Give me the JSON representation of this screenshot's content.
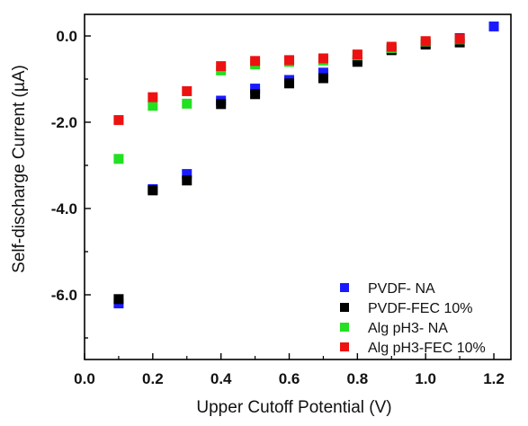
{
  "chart_data": {
    "type": "scatter",
    "title": "",
    "xlabel": "Upper Cutoff Potential (V)",
    "ylabel": "Self-discharge Current (µA)",
    "xlim": [
      0.0,
      1.25
    ],
    "ylim": [
      -7.5,
      0.5
    ],
    "x_ticks": [
      0.0,
      0.2,
      0.4,
      0.6,
      0.8,
      1.0,
      1.2
    ],
    "x_tick_labels": [
      "0.0",
      "0.2",
      "0.4",
      "0.6",
      "0.8",
      "1.0",
      "1.2"
    ],
    "y_ticks": [
      0.0,
      -2.0,
      -4.0,
      -6.0
    ],
    "y_tick_labels": [
      "0.0",
      "-2.0",
      "-4.0",
      "-6.0"
    ],
    "grid": false,
    "legend_position": "bottom-right",
    "series": [
      {
        "name": "PVDF- NA",
        "color": "#1a1aff",
        "x": [
          0.1,
          0.2,
          0.3,
          0.4,
          0.5,
          0.6,
          0.7,
          0.8,
          0.9,
          1.0,
          1.1,
          1.2
        ],
        "y": [
          -6.2,
          -3.55,
          -3.2,
          -1.5,
          -1.22,
          -1.02,
          -0.85,
          -0.55,
          -0.3,
          -0.18,
          -0.05,
          0.22
        ]
      },
      {
        "name": "PVDF-FEC 10%",
        "color": "#000000",
        "x": [
          0.1,
          0.2,
          0.3,
          0.4,
          0.5,
          0.6,
          0.7,
          0.8,
          0.9,
          1.0,
          1.1
        ],
        "y": [
          -6.1,
          -3.58,
          -3.35,
          -1.58,
          -1.35,
          -1.1,
          -0.98,
          -0.6,
          -0.33,
          -0.2,
          -0.15
        ]
      },
      {
        "name": "Alg pH3- NA",
        "color": "#22e022",
        "x": [
          0.1,
          0.2,
          0.3,
          0.4,
          0.5,
          0.6,
          0.7,
          0.8,
          0.9,
          1.0,
          1.1
        ],
        "y": [
          -2.85,
          -1.62,
          -1.57,
          -0.8,
          -0.66,
          -0.6,
          -0.57,
          -0.45,
          -0.28,
          -0.13,
          -0.08
        ]
      },
      {
        "name": "Alg pH3-FEC 10%",
        "color": "#ee1111",
        "x": [
          0.1,
          0.2,
          0.3,
          0.4,
          0.5,
          0.6,
          0.7,
          0.8,
          0.9,
          1.0,
          1.1
        ],
        "y": [
          -1.95,
          -1.42,
          -1.28,
          -0.7,
          -0.58,
          -0.56,
          -0.52,
          -0.43,
          -0.25,
          -0.12,
          -0.07
        ]
      }
    ]
  }
}
